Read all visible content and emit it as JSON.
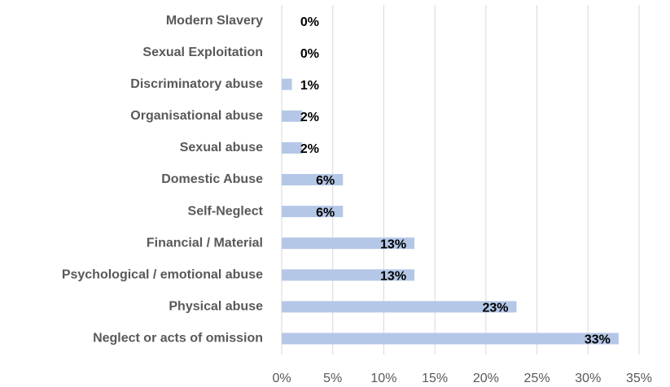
{
  "chart_data": {
    "type": "barh",
    "categories": [
      "Modern Slavery",
      "Sexual Exploitation",
      "Discriminatory abuse",
      "Organisational abuse",
      "Sexual abuse",
      "Domestic Abuse",
      "Self-Neglect",
      "Financial / Material",
      "Psychological / emotional abuse",
      "Physical abuse",
      "Neglect or acts of omission"
    ],
    "values": [
      0,
      0,
      1,
      2,
      2,
      6,
      6,
      13,
      13,
      23,
      33
    ],
    "value_labels": [
      "0%",
      "0%",
      "1%",
      "2%",
      "2%",
      "6%",
      "6%",
      "13%",
      "13%",
      "23%",
      "33%"
    ],
    "color": "#b4c7e7",
    "xlim": [
      0,
      35
    ],
    "xticks": [
      {
        "value": 0,
        "label": "0%"
      },
      {
        "value": 5,
        "label": "5%"
      },
      {
        "value": 10,
        "label": "10%"
      },
      {
        "value": 15,
        "label": "15%"
      },
      {
        "value": 20,
        "label": "20%"
      },
      {
        "value": 25,
        "label": "25%"
      },
      {
        "value": 30,
        "label": "30%"
      },
      {
        "value": 35,
        "label": "35%"
      }
    ],
    "grid": true
  }
}
